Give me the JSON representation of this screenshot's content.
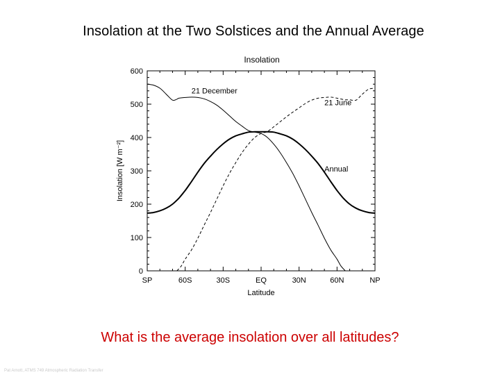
{
  "slide": {
    "title": "Insolation at the Two Solstices and the Annual Average",
    "question": "What is the average insolation over all latitudes?",
    "footer": "Pat Arnott, ATMS 749 Atmospheric Radiation Transfer"
  },
  "colors": {
    "question": "#cc0000",
    "footer": "#c9c9c9",
    "axes": "#000000"
  },
  "chart_data": {
    "type": "line",
    "title": "Insolation",
    "xlabel": "Latitude",
    "ylabel": "Insolation [W m⁻²]",
    "xlim": [
      -90,
      90
    ],
    "ylim": [
      0,
      600
    ],
    "x_ticks": [
      {
        "value": -90,
        "label": "SP"
      },
      {
        "value": -60,
        "label": "60S"
      },
      {
        "value": -30,
        "label": "30S"
      },
      {
        "value": 0,
        "label": "EQ"
      },
      {
        "value": 30,
        "label": "30N"
      },
      {
        "value": 60,
        "label": "60N"
      },
      {
        "value": 90,
        "label": "NP"
      }
    ],
    "y_ticks": [
      0,
      100,
      200,
      300,
      400,
      500,
      600
    ],
    "grid": false,
    "series": [
      {
        "name": "21 December",
        "style": "solid",
        "linewidth": 1,
        "label_at": [
          -55,
          532
        ],
        "x": [
          -90,
          -85,
          -80,
          -75,
          -70,
          -66.5,
          -65,
          -60,
          -55,
          -50,
          -45,
          -40,
          -35,
          -30,
          -25,
          -20,
          -15,
          -10,
          -5,
          0,
          5,
          10,
          15,
          20,
          25,
          30,
          35,
          40,
          45,
          50,
          55,
          60,
          63,
          66.5
        ],
        "y": [
          560,
          557,
          548,
          530,
          512,
          515,
          518,
          520,
          521,
          520,
          516,
          508,
          497,
          482,
          465,
          448,
          434,
          421,
          416,
          412,
          400,
          380,
          355,
          325,
          292,
          255,
          215,
          175,
          137,
          98,
          63,
          35,
          15,
          0
        ]
      },
      {
        "name": "21 June",
        "style": "dashed",
        "linewidth": 1,
        "label_at": [
          50,
          497
        ],
        "x": [
          -66.5,
          -63,
          -60,
          -55,
          -50,
          -45,
          -40,
          -35,
          -30,
          -25,
          -20,
          -15,
          -10,
          -5,
          0,
          5,
          10,
          15,
          20,
          25,
          30,
          35,
          40,
          45,
          50,
          55,
          60,
          65,
          66.5,
          70,
          75,
          80,
          85,
          90
        ],
        "y": [
          0,
          15,
          35,
          63,
          98,
          137,
          175,
          215,
          255,
          292,
          325,
          355,
          380,
          400,
          412,
          418,
          432,
          447,
          462,
          476,
          489,
          502,
          512,
          518,
          520,
          521,
          518,
          514,
          513,
          513,
          512,
          530,
          545,
          548
        ]
      },
      {
        "name": "Annual",
        "style": "solid",
        "linewidth": 2,
        "label_at": [
          50,
          298
        ],
        "x": [
          -90,
          -85,
          -80,
          -75,
          -70,
          -65,
          -60,
          -55,
          -50,
          -45,
          -40,
          -35,
          -30,
          -25,
          -20,
          -15,
          -10,
          -5,
          0,
          5,
          10,
          15,
          20,
          25,
          30,
          35,
          40,
          45,
          50,
          55,
          60,
          65,
          70,
          75,
          80,
          85,
          90
        ],
        "y": [
          173,
          175,
          180,
          188,
          200,
          218,
          241,
          268,
          296,
          322,
          344,
          364,
          381,
          395,
          405,
          411,
          416,
          417,
          417,
          417,
          416,
          411,
          405,
          395,
          381,
          364,
          344,
          322,
          296,
          268,
          241,
          218,
          200,
          188,
          180,
          175,
          173
        ]
      }
    ]
  }
}
